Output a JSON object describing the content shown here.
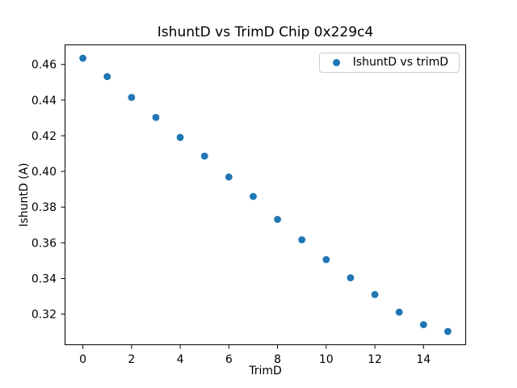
{
  "chart_data": {
    "type": "scatter",
    "title": "IshuntD vs TrimD Chip 0x229c4",
    "xlabel": "TrimD",
    "ylabel": "IshuntD (A)",
    "series": [
      {
        "name": "IshuntD vs trimD",
        "color": "#1f77b4",
        "x": [
          0,
          1,
          2,
          3,
          4,
          5,
          6,
          7,
          8,
          9,
          10,
          11,
          12,
          13,
          14,
          15
        ],
        "y": [
          0.4635,
          0.4532,
          0.4415,
          0.4303,
          0.4191,
          0.4086,
          0.3969,
          0.386,
          0.3731,
          0.3617,
          0.3506,
          0.3404,
          0.331,
          0.3211,
          0.3141,
          0.3103
        ]
      }
    ],
    "xlim": [
      -0.75,
      15.75
    ],
    "ylim": [
      0.3026,
      0.4712
    ],
    "xticks": [
      0,
      2,
      4,
      6,
      8,
      10,
      12,
      14
    ],
    "xtick_labels": [
      "0",
      "2",
      "4",
      "6",
      "8",
      "10",
      "12",
      "14"
    ],
    "yticks": [
      0.32,
      0.34,
      0.36,
      0.38,
      0.4,
      0.42,
      0.44,
      0.46
    ],
    "ytick_labels": [
      "0.32",
      "0.34",
      "0.36",
      "0.38",
      "0.40",
      "0.42",
      "0.44",
      "0.46"
    ],
    "legend_position": "upper right",
    "grid": false,
    "background_color": "#ffffff",
    "spine_color": "#000000",
    "text_color": "#000000"
  }
}
